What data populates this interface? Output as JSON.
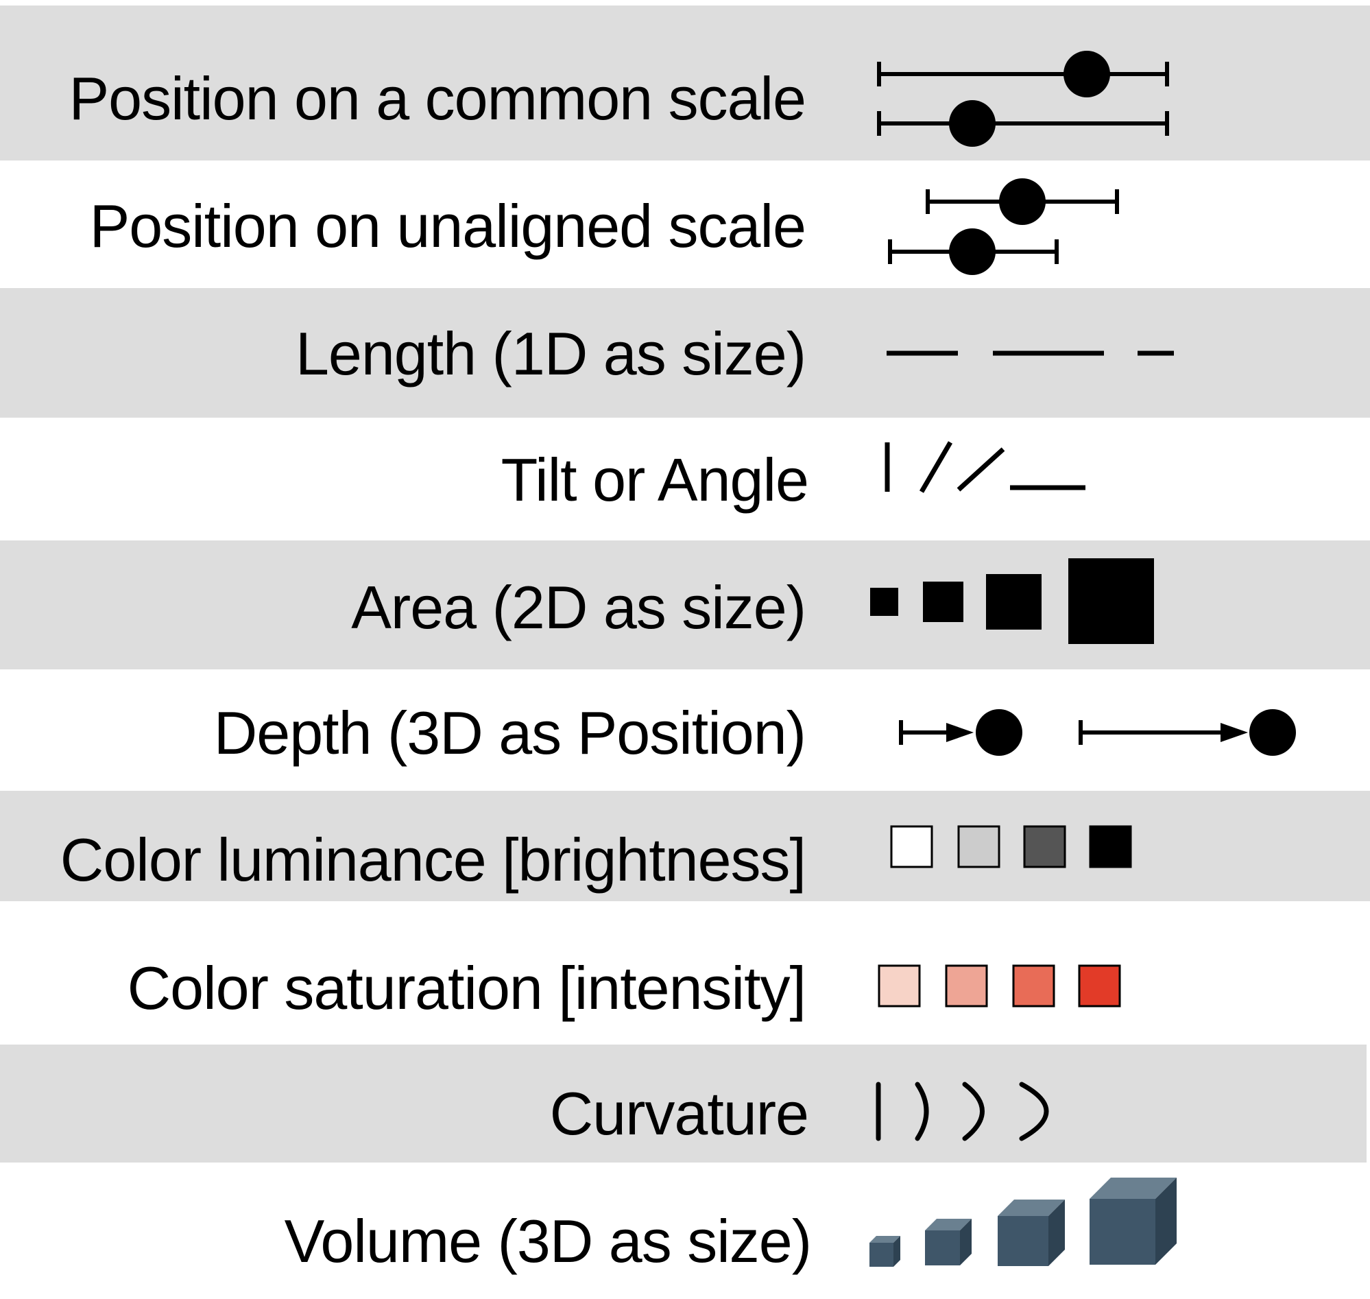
{
  "rows": [
    {
      "id": "position-common-scale",
      "label": "Position on a common scale",
      "shaded": true
    },
    {
      "id": "position-unaligned-scale",
      "label": "Position on unaligned scale",
      "shaded": false
    },
    {
      "id": "length",
      "label": "Length (1D as size)",
      "shaded": true
    },
    {
      "id": "tilt-angle",
      "label": "Tilt or Angle",
      "shaded": false
    },
    {
      "id": "area",
      "label": "Area (2D as size)",
      "shaded": true
    },
    {
      "id": "depth",
      "label": "Depth (3D as Position)",
      "shaded": false
    },
    {
      "id": "color-luminance",
      "label": "Color luminance [brightness]",
      "shaded": true
    },
    {
      "id": "color-saturation",
      "label": "Color saturation [intensity]",
      "shaded": false
    },
    {
      "id": "curvature",
      "label": "Curvature",
      "shaded": true
    },
    {
      "id": "volume",
      "label": "Volume (3D as size)",
      "shaded": false
    }
  ],
  "colors": {
    "band": "#dddddd",
    "ink": "#000000",
    "luminance": [
      "#ffffff",
      "#cccccc",
      "#555555",
      "#000000"
    ],
    "saturation": [
      "#f7d3c7",
      "#eea595",
      "#e86c57",
      "#e23b28"
    ],
    "cube_front": "#3f5669",
    "cube_top": "#6a8090",
    "cube_side": "#2e4252"
  },
  "icons": {
    "position-common-scale": "dot-on-range-icon",
    "position-unaligned-scale": "dot-on-range-icon",
    "length": "line-segment-icon",
    "tilt-angle": "tilted-line-icon",
    "area": "square-icon",
    "depth": "arrow-to-dot-icon",
    "color-luminance": "gray-swatch-icon",
    "color-saturation": "red-swatch-icon",
    "curvature": "curved-line-icon",
    "volume": "cube-icon"
  }
}
